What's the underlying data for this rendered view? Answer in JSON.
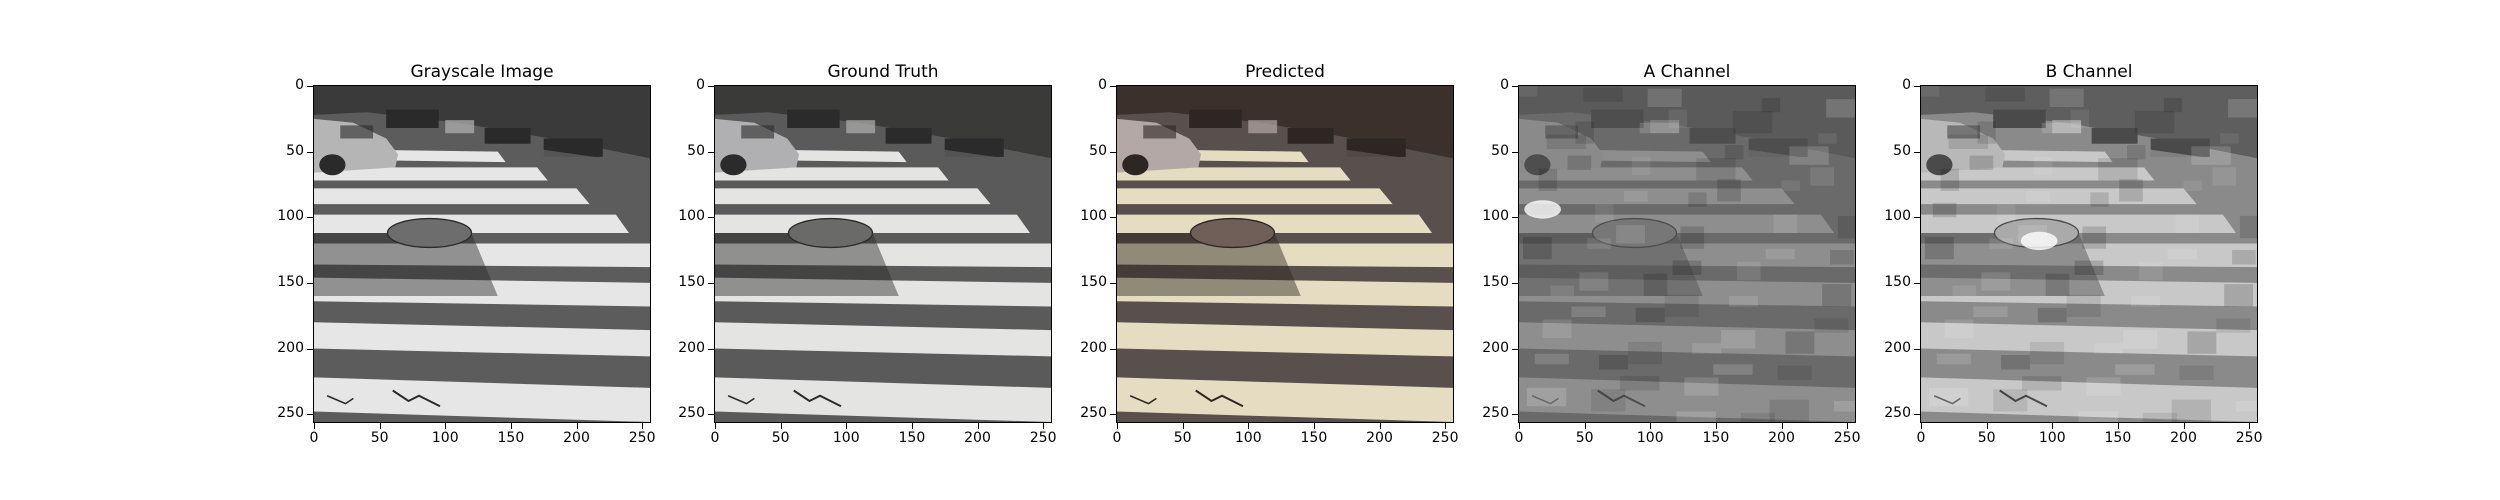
{
  "figure": {
    "panels": [
      {
        "title": "Grayscale Image",
        "kind": "gray"
      },
      {
        "title": "Ground Truth",
        "kind": "gt"
      },
      {
        "title": "Predicted",
        "kind": "pred"
      },
      {
        "title": "A Channel",
        "kind": "achan"
      },
      {
        "title": "B Channel",
        "kind": "bchan"
      }
    ],
    "x_ticks": [
      "0",
      "50",
      "100",
      "150",
      "200",
      "250"
    ],
    "y_ticks": [
      "0",
      "50",
      "100",
      "150",
      "200",
      "250"
    ],
    "axis_range": [
      0,
      256
    ]
  }
}
